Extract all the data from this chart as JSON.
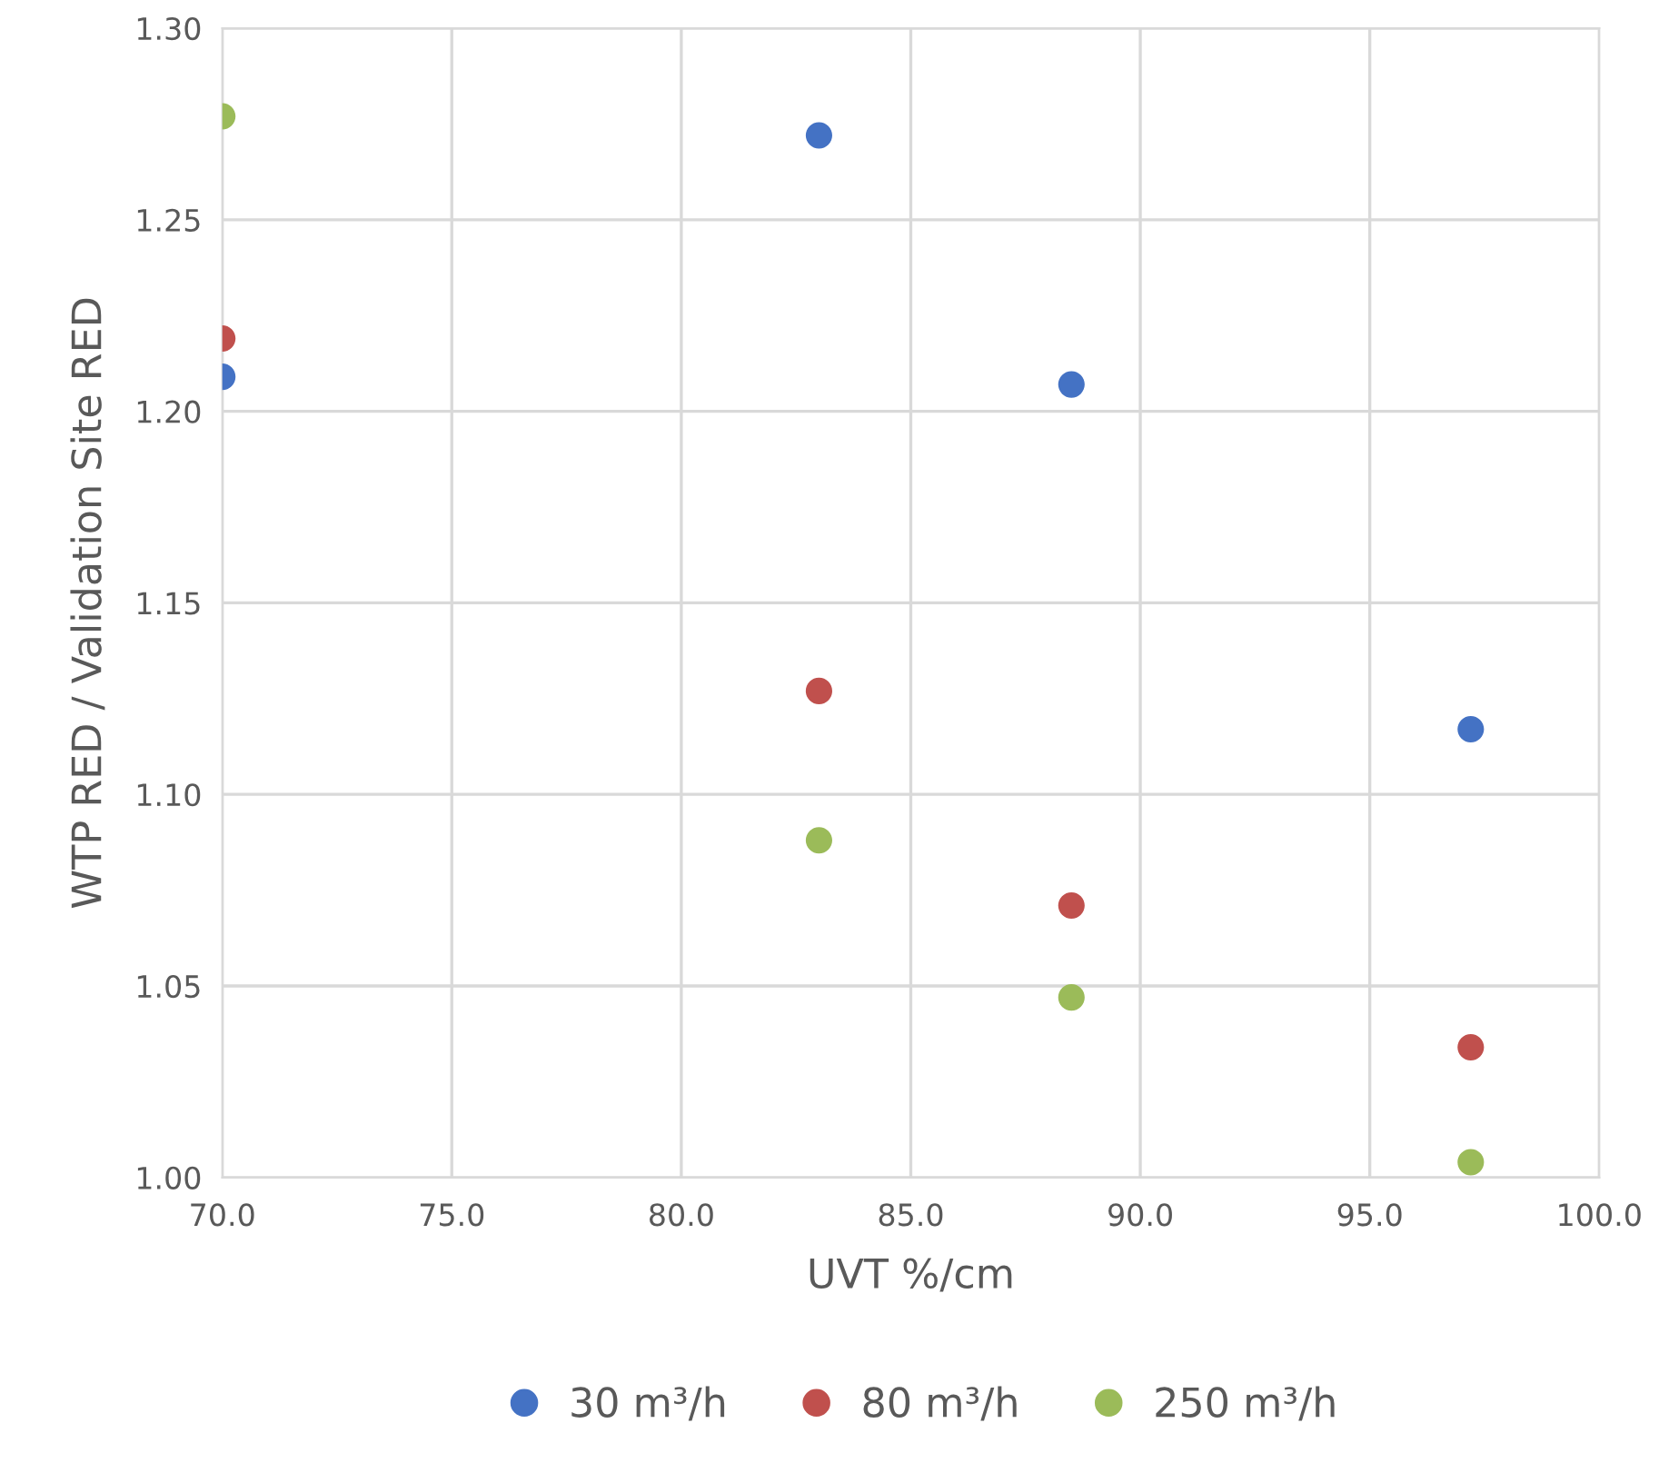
{
  "chart_data": {
    "type": "scatter",
    "xlabel": "UVT %/cm",
    "ylabel": "WTP RED / Validation Site RED",
    "series": [
      {
        "name": "30 m³/h",
        "color": "#4472c4",
        "x": [
          70.0,
          83.0,
          88.5,
          97.2
        ],
        "values": [
          1.209,
          1.272,
          1.207,
          1.117
        ]
      },
      {
        "name": "80 m³/h",
        "color": "#c0504d",
        "x": [
          70.0,
          83.0,
          88.5,
          97.2
        ],
        "values": [
          1.219,
          1.127,
          1.071,
          1.034
        ]
      },
      {
        "name": "250 m³/h",
        "color": "#9bbb59",
        "x": [
          70.0,
          83.0,
          88.5,
          97.2
        ],
        "values": [
          1.277,
          1.088,
          1.047,
          1.004
        ]
      }
    ],
    "xlim": [
      70,
      100
    ],
    "xticks": [
      {
        "value": 70,
        "label": "70.0"
      },
      {
        "value": 75,
        "label": "75.0"
      },
      {
        "value": 80,
        "label": "80.0"
      },
      {
        "value": 85,
        "label": "85.0"
      },
      {
        "value": 90,
        "label": "90.0"
      },
      {
        "value": 95,
        "label": "95.0"
      },
      {
        "value": 100,
        "label": "100.0"
      }
    ],
    "ylim": [
      1.0,
      1.3
    ],
    "yticks": [
      {
        "value": 1.0,
        "label": "1.00"
      },
      {
        "value": 1.05,
        "label": "1.05"
      },
      {
        "value": 1.1,
        "label": "1.10"
      },
      {
        "value": 1.15,
        "label": "1.15"
      },
      {
        "value": 1.2,
        "label": "1.20"
      },
      {
        "value": 1.25,
        "label": "1.25"
      },
      {
        "value": 1.3,
        "label": "1.30"
      }
    ],
    "grid": true,
    "legend": "bottom",
    "marker": "circle"
  }
}
